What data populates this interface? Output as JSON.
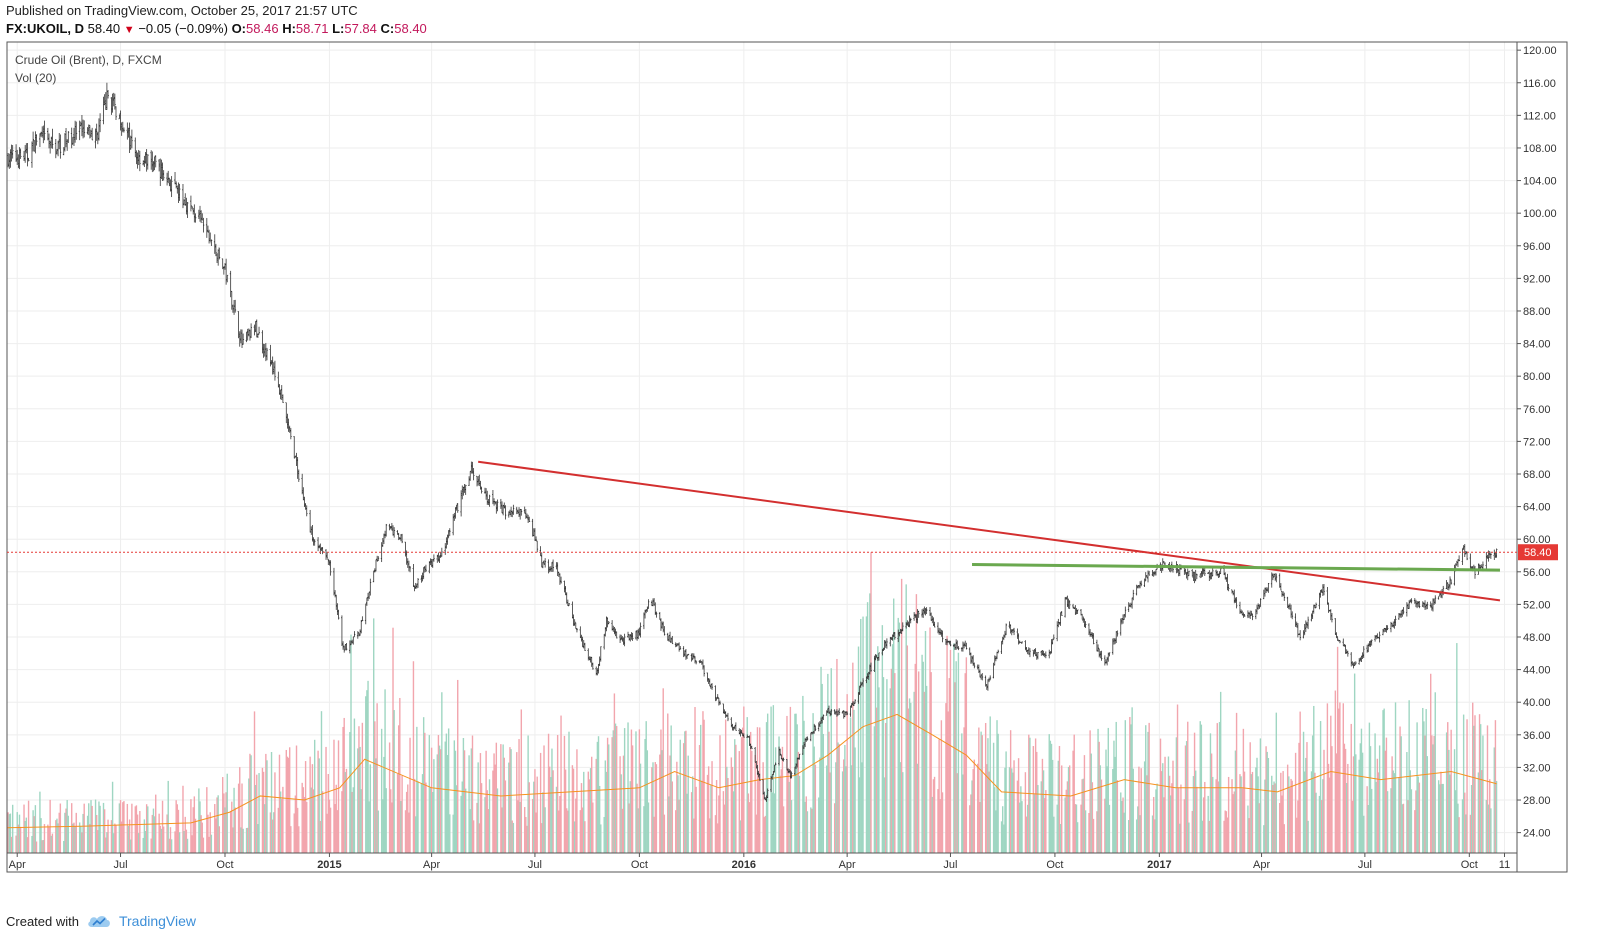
{
  "header": {
    "published": "Published on TradingView.com, October 25, 2017 21:57 UTC",
    "symbol": "FX:UKOIL, D",
    "last": "58.40",
    "change_arrow": "▼",
    "change": "−0.05 (−0.09%)",
    "o_label": "O:",
    "o_val": "58.46",
    "h_label": "H:",
    "h_val": "58.71",
    "l_label": "L:",
    "l_val": "57.84",
    "c_label": "C:",
    "c_val": "58.40"
  },
  "legend": {
    "series_title": "Crude Oil (Brent), D, FXCM",
    "volume_title": "Vol (20)"
  },
  "price_badge": "58.40",
  "footer": {
    "created_with": "Created with",
    "brand": "TradingView",
    "brand_icon": "tradingview-cloud-icon"
  },
  "colors": {
    "up": "#26a69a",
    "down": "#ef5350",
    "candle": "#333333",
    "vol_up": "#9fd6c2",
    "vol_down": "#f2a5ad",
    "vol_ma": "#f6921e",
    "trend_red": "#d32f2f",
    "trend_green": "#6aa84f",
    "badge": "#e53935"
  },
  "chart_data": {
    "type": "candlestick",
    "title": "Crude Oil (Brent), D, FXCM",
    "y_ticks": [
      "120.00",
      "116.00",
      "112.00",
      "108.00",
      "104.00",
      "100.00",
      "96.00",
      "92.00",
      "88.00",
      "84.00",
      "80.00",
      "76.00",
      "72.00",
      "68.00",
      "64.00",
      "60.00",
      "56.00",
      "52.00",
      "48.00",
      "44.00",
      "40.00",
      "36.00",
      "32.00",
      "28.00",
      "24.00"
    ],
    "x_ticks": [
      {
        "label": "Apr",
        "date": "2014-04-01",
        "bold": false
      },
      {
        "label": "Jul",
        "date": "2014-07-01",
        "bold": false
      },
      {
        "label": "Oct",
        "date": "2014-10-01",
        "bold": false
      },
      {
        "label": "2015",
        "date": "2015-01-01",
        "bold": true
      },
      {
        "label": "Apr",
        "date": "2015-04-01",
        "bold": false
      },
      {
        "label": "Jul",
        "date": "2015-07-01",
        "bold": false
      },
      {
        "label": "Oct",
        "date": "2015-10-01",
        "bold": false
      },
      {
        "label": "2016",
        "date": "2016-01-01",
        "bold": true
      },
      {
        "label": "Apr",
        "date": "2016-04-01",
        "bold": false
      },
      {
        "label": "Jul",
        "date": "2016-07-01",
        "bold": false
      },
      {
        "label": "Oct",
        "date": "2016-10-01",
        "bold": false
      },
      {
        "label": "2017",
        "date": "2017-01-01",
        "bold": true
      },
      {
        "label": "Apr",
        "date": "2017-04-01",
        "bold": false
      },
      {
        "label": "Jul",
        "date": "2017-07-01",
        "bold": false
      },
      {
        "label": "Oct",
        "date": "2017-10-01",
        "bold": false
      },
      {
        "label": "11",
        "date": "2017-11-01",
        "bold": false
      }
    ],
    "x_range": [
      "2014-03-23",
      "2017-11-12"
    ],
    "y_range": [
      21.5,
      121
    ],
    "grid": true,
    "last_price": 58.4,
    "close_path": [
      [
        "2014-03-23",
        106.8
      ],
      [
        "2014-04-10",
        107.0
      ],
      [
        "2014-04-20",
        109.6
      ],
      [
        "2014-05-05",
        108.0
      ],
      [
        "2014-05-25",
        110.0
      ],
      [
        "2014-06-10",
        109.5
      ],
      [
        "2014-06-20",
        114.5
      ],
      [
        "2014-07-01",
        111.5
      ],
      [
        "2014-07-15",
        107.0
      ],
      [
        "2014-08-01",
        106.0
      ],
      [
        "2014-08-20",
        102.5
      ],
      [
        "2014-09-10",
        99.0
      ],
      [
        "2014-10-01",
        93.0
      ],
      [
        "2014-10-16",
        84.0
      ],
      [
        "2014-10-28",
        86.0
      ],
      [
        "2014-11-15",
        80.0
      ],
      [
        "2014-12-01",
        70.5
      ],
      [
        "2014-12-15",
        61.0
      ],
      [
        "2015-01-01",
        57.0
      ],
      [
        "2015-01-13",
        46.5
      ],
      [
        "2015-01-27",
        48.5
      ],
      [
        "2015-02-10",
        56.5
      ],
      [
        "2015-02-20",
        61.5
      ],
      [
        "2015-03-05",
        60.0
      ],
      [
        "2015-03-17",
        54.0
      ],
      [
        "2015-03-27",
        56.5
      ],
      [
        "2015-04-10",
        58.0
      ],
      [
        "2015-04-25",
        64.5
      ],
      [
        "2015-05-06",
        68.5
      ],
      [
        "2015-05-20",
        65.0
      ],
      [
        "2015-06-05",
        63.5
      ],
      [
        "2015-06-25",
        63.0
      ],
      [
        "2015-07-07",
        57.0
      ],
      [
        "2015-07-20",
        56.5
      ],
      [
        "2015-08-05",
        49.5
      ],
      [
        "2015-08-24",
        43.5
      ],
      [
        "2015-09-02",
        50.0
      ],
      [
        "2015-09-15",
        47.5
      ],
      [
        "2015-10-01",
        48.5
      ],
      [
        "2015-10-10",
        53.0
      ],
      [
        "2015-10-25",
        48.0
      ],
      [
        "2015-11-10",
        46.0
      ],
      [
        "2015-11-25",
        44.5
      ],
      [
        "2015-12-08",
        40.5
      ],
      [
        "2015-12-22",
        37.0
      ],
      [
        "2016-01-05",
        35.5
      ],
      [
        "2016-01-20",
        28.0
      ],
      [
        "2016-02-01",
        34.0
      ],
      [
        "2016-02-11",
        31.0
      ],
      [
        "2016-02-25",
        35.5
      ],
      [
        "2016-03-15",
        39.0
      ],
      [
        "2016-04-01",
        38.5
      ],
      [
        "2016-04-17",
        43.0
      ],
      [
        "2016-05-01",
        46.5
      ],
      [
        "2016-05-15",
        48.5
      ],
      [
        "2016-06-08",
        51.5
      ],
      [
        "2016-06-27",
        47.5
      ],
      [
        "2016-07-15",
        46.5
      ],
      [
        "2016-08-02",
        42.0
      ],
      [
        "2016-08-20",
        49.5
      ],
      [
        "2016-09-05",
        46.5
      ],
      [
        "2016-09-25",
        45.5
      ],
      [
        "2016-10-10",
        52.5
      ],
      [
        "2016-10-25",
        50.5
      ],
      [
        "2016-11-14",
        44.5
      ],
      [
        "2016-11-30",
        50.5
      ],
      [
        "2016-12-15",
        54.5
      ],
      [
        "2017-01-05",
        57.0
      ],
      [
        "2017-02-01",
        55.5
      ],
      [
        "2017-02-25",
        56.0
      ],
      [
        "2017-03-14",
        51.0
      ],
      [
        "2017-03-25",
        50.5
      ],
      [
        "2017-04-12",
        56.0
      ],
      [
        "2017-04-25",
        51.5
      ],
      [
        "2017-05-05",
        48.0
      ],
      [
        "2017-05-25",
        54.0
      ],
      [
        "2017-06-05",
        48.5
      ],
      [
        "2017-06-21",
        44.5
      ],
      [
        "2017-07-05",
        47.0
      ],
      [
        "2017-07-25",
        49.5
      ],
      [
        "2017-08-10",
        52.0
      ],
      [
        "2017-08-30",
        52.0
      ],
      [
        "2017-09-15",
        55.0
      ],
      [
        "2017-09-26",
        59.0
      ],
      [
        "2017-10-05",
        56.0
      ],
      [
        "2017-10-15",
        57.5
      ],
      [
        "2017-10-25",
        58.4
      ]
    ],
    "volume": {
      "ylim": [
        21.5,
        121
      ],
      "path": [
        [
          "2014-03-23",
          24.6
        ],
        [
          "2014-06-01",
          24.8
        ],
        [
          "2014-09-01",
          25.2
        ],
        [
          "2014-10-05",
          26.5
        ],
        [
          "2014-11-01",
          28.5
        ],
        [
          "2014-12-10",
          28.0
        ],
        [
          "2015-01-10",
          29.5
        ],
        [
          "2015-02-01",
          33.0
        ],
        [
          "2015-04-01",
          29.5
        ],
        [
          "2015-06-01",
          28.5
        ],
        [
          "2015-08-01",
          29.0
        ],
        [
          "2015-10-01",
          29.5
        ],
        [
          "2015-11-01",
          31.5
        ],
        [
          "2015-12-10",
          29.5
        ],
        [
          "2016-01-15",
          30.5
        ],
        [
          "2016-02-15",
          31.0
        ],
        [
          "2016-03-15",
          33.5
        ],
        [
          "2016-04-15",
          37.0
        ],
        [
          "2016-05-15",
          38.5
        ],
        [
          "2016-06-15",
          36.0
        ],
        [
          "2016-07-15",
          33.5
        ],
        [
          "2016-08-15",
          29.0
        ],
        [
          "2016-10-15",
          28.5
        ],
        [
          "2016-12-01",
          30.5
        ],
        [
          "2017-01-15",
          29.5
        ],
        [
          "2017-03-15",
          29.5
        ],
        [
          "2017-04-15",
          29.0
        ],
        [
          "2017-06-01",
          31.5
        ],
        [
          "2017-07-15",
          30.5
        ],
        [
          "2017-09-15",
          31.5
        ],
        [
          "2017-10-25",
          30.0
        ]
      ]
    },
    "trendlines": [
      {
        "color": "red",
        "from": [
          "2015-05-12",
          69.5
        ],
        "to": [
          "2017-10-28",
          52.5
        ]
      },
      {
        "color": "green",
        "from": [
          "2016-07-20",
          56.9
        ],
        "to": [
          "2017-10-28",
          56.2
        ]
      }
    ]
  }
}
